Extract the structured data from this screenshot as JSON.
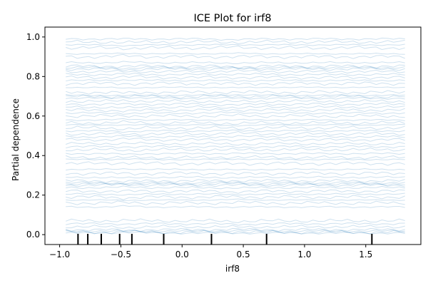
{
  "chart_data": {
    "type": "line",
    "title": "ICE Plot for irf8",
    "xlabel": "irf8",
    "ylabel": "Partial dependence",
    "xlim": [
      -1.12,
      1.95
    ],
    "ylim": [
      -0.05,
      1.05
    ],
    "xticks": [
      -1.0,
      -0.5,
      0.0,
      0.5,
      1.0,
      1.5
    ],
    "xtick_labels": [
      "−1.0",
      "−0.5",
      "0.0",
      "0.5",
      "1.0",
      "1.5"
    ],
    "yticks": [
      0.0,
      0.2,
      0.4,
      0.6,
      0.8,
      1.0
    ],
    "ytick_labels": [
      "0.0",
      "0.2",
      "0.4",
      "0.6",
      "0.8",
      "1.0"
    ],
    "x_range": [
      -0.95,
      1.82
    ],
    "grid_points": 60,
    "line_color": "#1f77b4",
    "line_alpha": 0.22,
    "rug_color": "#000000",
    "rug_x": [
      -0.85,
      -0.77,
      -0.66,
      -0.51,
      -0.41,
      -0.15,
      0.24,
      0.69,
      1.55
    ],
    "curve_levels": [
      0.008,
      0.012,
      0.018,
      0.025,
      0.04,
      0.055,
      0.07,
      0.14,
      0.16,
      0.175,
      0.19,
      0.205,
      0.22,
      0.238,
      0.25,
      0.256,
      0.262,
      0.272,
      0.29,
      0.31,
      0.33,
      0.36,
      0.38,
      0.39,
      0.41,
      0.43,
      0.445,
      0.46,
      0.48,
      0.495,
      0.51,
      0.525,
      0.54,
      0.555,
      0.565,
      0.58,
      0.6,
      0.615,
      0.63,
      0.645,
      0.66,
      0.675,
      0.69,
      0.698,
      0.705,
      0.72,
      0.745,
      0.765,
      0.78,
      0.795,
      0.81,
      0.825,
      0.838,
      0.845,
      0.852,
      0.87,
      0.9,
      0.915,
      0.945,
      0.96,
      0.975,
      0.99
    ]
  }
}
